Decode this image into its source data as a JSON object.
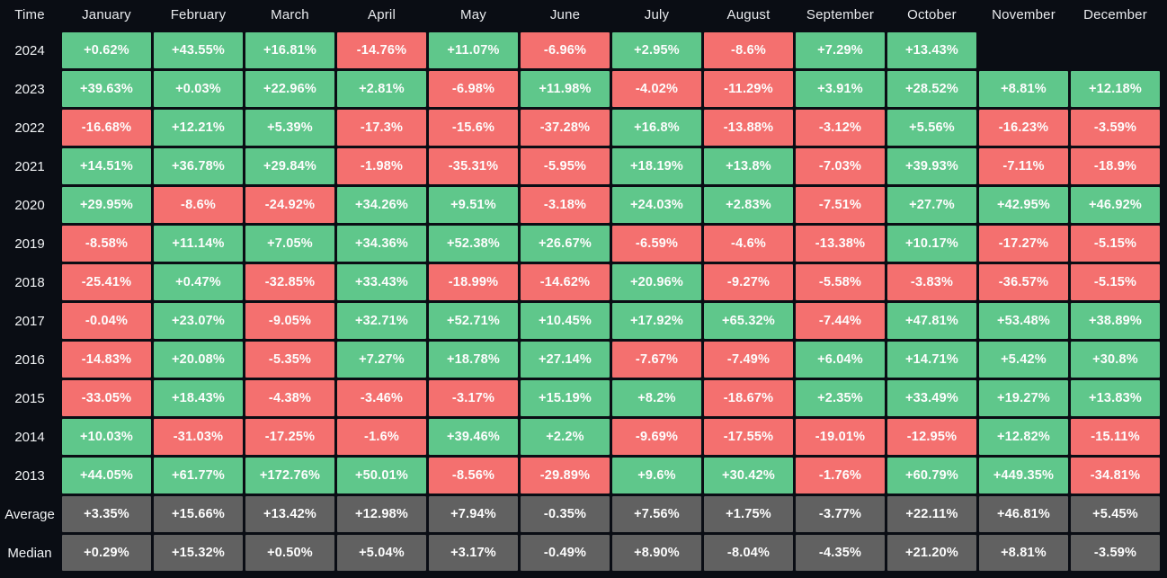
{
  "table": {
    "header": [
      "Time",
      "January",
      "February",
      "March",
      "April",
      "May",
      "June",
      "July",
      "August",
      "September",
      "October",
      "November",
      "December"
    ],
    "rows": [
      {
        "label": "2024",
        "type": "year",
        "values": [
          "+0.62%",
          "+43.55%",
          "+16.81%",
          "-14.76%",
          "+11.07%",
          "-6.96%",
          "+2.95%",
          "-8.6%",
          "+7.29%",
          "+13.43%",
          null,
          null
        ]
      },
      {
        "label": "2023",
        "type": "year",
        "values": [
          "+39.63%",
          "+0.03%",
          "+22.96%",
          "+2.81%",
          "-6.98%",
          "+11.98%",
          "-4.02%",
          "-11.29%",
          "+3.91%",
          "+28.52%",
          "+8.81%",
          "+12.18%"
        ]
      },
      {
        "label": "2022",
        "type": "year",
        "values": [
          "-16.68%",
          "+12.21%",
          "+5.39%",
          "-17.3%",
          "-15.6%",
          "-37.28%",
          "+16.8%",
          "-13.88%",
          "-3.12%",
          "+5.56%",
          "-16.23%",
          "-3.59%"
        ]
      },
      {
        "label": "2021",
        "type": "year",
        "values": [
          "+14.51%",
          "+36.78%",
          "+29.84%",
          "-1.98%",
          "-35.31%",
          "-5.95%",
          "+18.19%",
          "+13.8%",
          "-7.03%",
          "+39.93%",
          "-7.11%",
          "-18.9%"
        ]
      },
      {
        "label": "2020",
        "type": "year",
        "values": [
          "+29.95%",
          "-8.6%",
          "-24.92%",
          "+34.26%",
          "+9.51%",
          "-3.18%",
          "+24.03%",
          "+2.83%",
          "-7.51%",
          "+27.7%",
          "+42.95%",
          "+46.92%"
        ]
      },
      {
        "label": "2019",
        "type": "year",
        "values": [
          "-8.58%",
          "+11.14%",
          "+7.05%",
          "+34.36%",
          "+52.38%",
          "+26.67%",
          "-6.59%",
          "-4.6%",
          "-13.38%",
          "+10.17%",
          "-17.27%",
          "-5.15%"
        ]
      },
      {
        "label": "2018",
        "type": "year",
        "values": [
          "-25.41%",
          "+0.47%",
          "-32.85%",
          "+33.43%",
          "-18.99%",
          "-14.62%",
          "+20.96%",
          "-9.27%",
          "-5.58%",
          "-3.83%",
          "-36.57%",
          "-5.15%"
        ]
      },
      {
        "label": "2017",
        "type": "year",
        "values": [
          "-0.04%",
          "+23.07%",
          "-9.05%",
          "+32.71%",
          "+52.71%",
          "+10.45%",
          "+17.92%",
          "+65.32%",
          "-7.44%",
          "+47.81%",
          "+53.48%",
          "+38.89%"
        ]
      },
      {
        "label": "2016",
        "type": "year",
        "values": [
          "-14.83%",
          "+20.08%",
          "-5.35%",
          "+7.27%",
          "+18.78%",
          "+27.14%",
          "-7.67%",
          "-7.49%",
          "+6.04%",
          "+14.71%",
          "+5.42%",
          "+30.8%"
        ]
      },
      {
        "label": "2015",
        "type": "year",
        "values": [
          "-33.05%",
          "+18.43%",
          "-4.38%",
          "-3.46%",
          "-3.17%",
          "+15.19%",
          "+8.2%",
          "-18.67%",
          "+2.35%",
          "+33.49%",
          "+19.27%",
          "+13.83%"
        ]
      },
      {
        "label": "2014",
        "type": "year",
        "values": [
          "+10.03%",
          "-31.03%",
          "-17.25%",
          "-1.6%",
          "+39.46%",
          "+2.2%",
          "-9.69%",
          "-17.55%",
          "-19.01%",
          "-12.95%",
          "+12.82%",
          "-15.11%"
        ]
      },
      {
        "label": "2013",
        "type": "year",
        "values": [
          "+44.05%",
          "+61.77%",
          "+172.76%",
          "+50.01%",
          "-8.56%",
          "-29.89%",
          "+9.6%",
          "+30.42%",
          "-1.76%",
          "+60.79%",
          "+449.35%",
          "-34.81%"
        ]
      },
      {
        "label": "Average",
        "type": "stat",
        "values": [
          "+3.35%",
          "+15.66%",
          "+13.42%",
          "+12.98%",
          "+7.94%",
          "-0.35%",
          "+7.56%",
          "+1.75%",
          "-3.77%",
          "+22.11%",
          "+46.81%",
          "+5.45%"
        ]
      },
      {
        "label": "Median",
        "type": "stat",
        "values": [
          "+0.29%",
          "+15.32%",
          "+0.50%",
          "+5.04%",
          "+3.17%",
          "-0.49%",
          "+8.90%",
          "-8.04%",
          "-4.35%",
          "+21.20%",
          "+8.81%",
          "-3.59%"
        ]
      }
    ]
  },
  "colors": {
    "background": "#0a0d14",
    "positive": "#5fc78b",
    "negative": "#f4706f",
    "neutral": "#616161",
    "header_text": "#e9ebee",
    "cell_text": "#fdfdfd"
  },
  "chart_data": {
    "type": "heatmap",
    "title": "Monthly returns (%) by year",
    "columns": [
      "January",
      "February",
      "March",
      "April",
      "May",
      "June",
      "July",
      "August",
      "September",
      "October",
      "November",
      "December"
    ],
    "rows": [
      "2024",
      "2023",
      "2022",
      "2021",
      "2020",
      "2019",
      "2018",
      "2017",
      "2016",
      "2015",
      "2014",
      "2013",
      "Average",
      "Median"
    ],
    "unit": "%",
    "legend_position": "none",
    "grid": false,
    "values_pct": [
      [
        0.62,
        43.55,
        16.81,
        -14.76,
        11.07,
        -6.96,
        2.95,
        -8.6,
        7.29,
        13.43,
        null,
        null
      ],
      [
        39.63,
        0.03,
        22.96,
        2.81,
        -6.98,
        11.98,
        -4.02,
        -11.29,
        3.91,
        28.52,
        8.81,
        12.18
      ],
      [
        -16.68,
        12.21,
        5.39,
        -17.3,
        -15.6,
        -37.28,
        16.8,
        -13.88,
        -3.12,
        5.56,
        -16.23,
        -3.59
      ],
      [
        14.51,
        36.78,
        29.84,
        -1.98,
        -35.31,
        -5.95,
        18.19,
        13.8,
        -7.03,
        39.93,
        -7.11,
        -18.9
      ],
      [
        29.95,
        -8.6,
        -24.92,
        34.26,
        9.51,
        -3.18,
        24.03,
        2.83,
        -7.51,
        27.7,
        42.95,
        46.92
      ],
      [
        -8.58,
        11.14,
        7.05,
        34.36,
        52.38,
        26.67,
        -6.59,
        -4.6,
        -13.38,
        10.17,
        -17.27,
        -5.15
      ],
      [
        -25.41,
        0.47,
        -32.85,
        33.43,
        -18.99,
        -14.62,
        20.96,
        -9.27,
        -5.58,
        -3.83,
        -36.57,
        -5.15
      ],
      [
        -0.04,
        23.07,
        -9.05,
        32.71,
        52.71,
        10.45,
        17.92,
        65.32,
        -7.44,
        47.81,
        53.48,
        38.89
      ],
      [
        -14.83,
        20.08,
        -5.35,
        7.27,
        18.78,
        27.14,
        -7.67,
        -7.49,
        6.04,
        14.71,
        5.42,
        30.8
      ],
      [
        -33.05,
        18.43,
        -4.38,
        -3.46,
        -3.17,
        15.19,
        8.2,
        -18.67,
        2.35,
        33.49,
        19.27,
        13.83
      ],
      [
        10.03,
        -31.03,
        -17.25,
        -1.6,
        39.46,
        2.2,
        -9.69,
        -17.55,
        -19.01,
        -12.95,
        12.82,
        -15.11
      ],
      [
        44.05,
        61.77,
        172.76,
        50.01,
        -8.56,
        -29.89,
        9.6,
        30.42,
        -1.76,
        60.79,
        449.35,
        -34.81
      ],
      [
        3.35,
        15.66,
        13.42,
        12.98,
        7.94,
        -0.35,
        7.56,
        1.75,
        -3.77,
        22.11,
        46.81,
        5.45
      ],
      [
        0.29,
        15.32,
        0.5,
        5.04,
        3.17,
        -0.49,
        8.9,
        -8.04,
        -4.35,
        21.2,
        8.81,
        -3.59
      ]
    ],
    "color_coding": "green = positive month, red = negative month, grey = Average/Median summary rows"
  }
}
